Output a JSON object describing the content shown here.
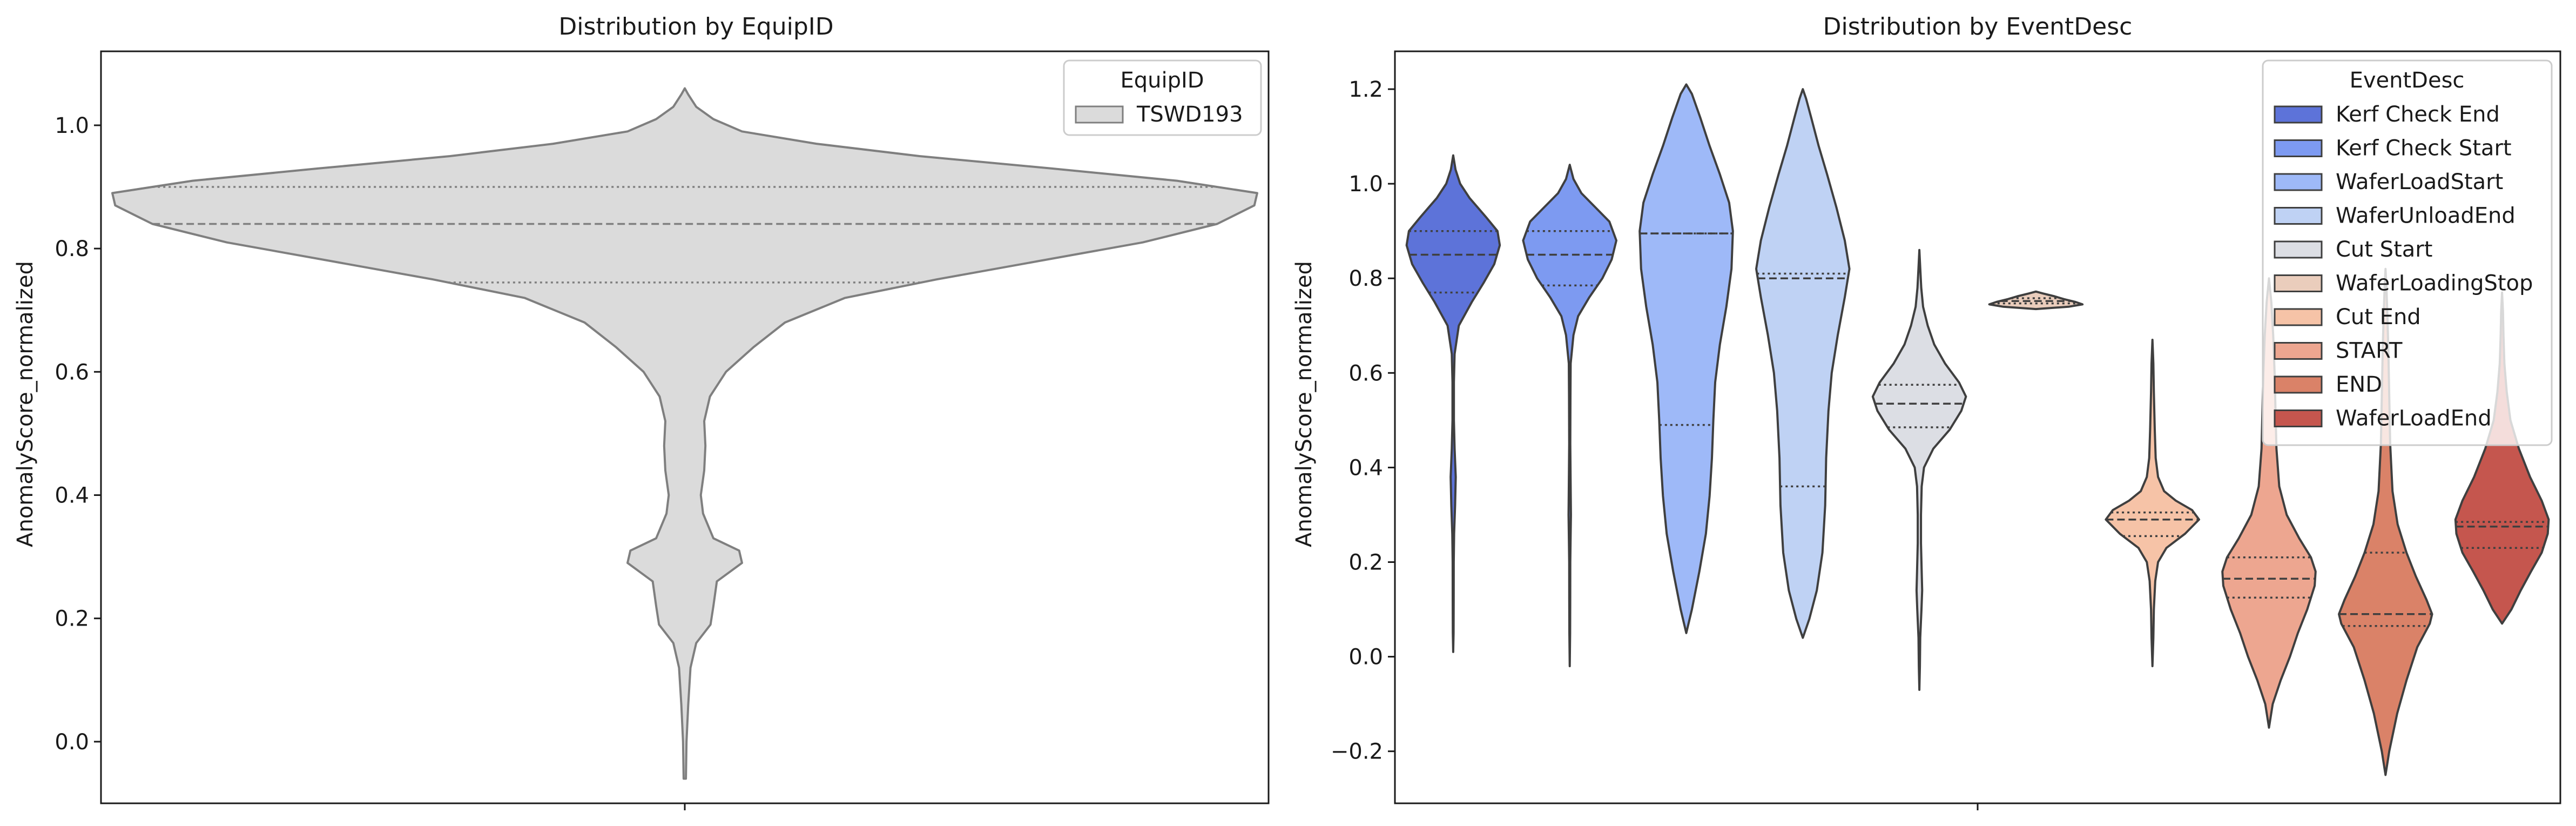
{
  "chart_data": [
    {
      "type": "violin",
      "title": "Distribution by EquipID",
      "xlabel": "",
      "ylabel": "AnomalyScore_normalized",
      "ylim": [
        -0.1,
        1.12
      ],
      "yticks": [
        "0.0",
        "0.2",
        "0.4",
        "0.6",
        "0.8",
        "1.0"
      ],
      "grid": false,
      "legend": {
        "title": "EquipID",
        "position": "top-right",
        "entries": [
          "TSWD193"
        ]
      },
      "series": [
        {
          "name": "TSWD193",
          "color": "#dbdbdb",
          "edge": "#7f7f7f",
          "quartiles": [
            0.745,
            0.84,
            0.9
          ],
          "profile": [
            [
              -0.06,
              0.002
            ],
            [
              0.0,
              0.003
            ],
            [
              0.06,
              0.006
            ],
            [
              0.12,
              0.01
            ],
            [
              0.16,
              0.02
            ],
            [
              0.19,
              0.045
            ],
            [
              0.22,
              0.05
            ],
            [
              0.26,
              0.056
            ],
            [
              0.29,
              0.1
            ],
            [
              0.31,
              0.095
            ],
            [
              0.33,
              0.05
            ],
            [
              0.37,
              0.032
            ],
            [
              0.4,
              0.028
            ],
            [
              0.44,
              0.034
            ],
            [
              0.48,
              0.036
            ],
            [
              0.52,
              0.034
            ],
            [
              0.56,
              0.044
            ],
            [
              0.6,
              0.072
            ],
            [
              0.64,
              0.12
            ],
            [
              0.68,
              0.175
            ],
            [
              0.72,
              0.28
            ],
            [
              0.75,
              0.44
            ],
            [
              0.78,
              0.62
            ],
            [
              0.81,
              0.8
            ],
            [
              0.84,
              0.93
            ],
            [
              0.87,
              0.995
            ],
            [
              0.89,
              1.0
            ],
            [
              0.91,
              0.86
            ],
            [
              0.93,
              0.64
            ],
            [
              0.95,
              0.41
            ],
            [
              0.97,
              0.23
            ],
            [
              0.99,
              0.1
            ],
            [
              1.01,
              0.05
            ],
            [
              1.03,
              0.02
            ],
            [
              1.05,
              0.006
            ],
            [
              1.06,
              0.0
            ]
          ]
        }
      ]
    },
    {
      "type": "violin",
      "title": "Distribution by EventDesc",
      "xlabel": "",
      "ylabel": "AnomalyScore_normalized",
      "ylim": [
        -0.31,
        1.28
      ],
      "yticks": [
        "−0.2",
        "0.0",
        "0.2",
        "0.4",
        "0.6",
        "0.8",
        "1.0",
        "1.2"
      ],
      "grid": false,
      "legend": {
        "title": "EventDesc",
        "position": "top-right",
        "entries": [
          "Kerf Check End",
          "Kerf Check Start",
          "WaferLoadStart",
          "WaferUnloadEnd",
          "Cut Start",
          "WaferLoadingStop",
          "Cut End",
          "START",
          "END",
          "WaferLoadEnd"
        ]
      },
      "series": [
        {
          "name": "Kerf Check End",
          "color": "#5d73d9",
          "quartiles": [
            0.77,
            0.85,
            0.9
          ],
          "profile": [
            [
              0.01,
              0.0
            ],
            [
              0.05,
              0.008
            ],
            [
              0.12,
              0.01
            ],
            [
              0.2,
              0.012
            ],
            [
              0.26,
              0.02
            ],
            [
              0.32,
              0.04
            ],
            [
              0.38,
              0.055
            ],
            [
              0.44,
              0.03
            ],
            [
              0.5,
              0.015
            ],
            [
              0.58,
              0.015
            ],
            [
              0.64,
              0.03
            ],
            [
              0.7,
              0.12
            ],
            [
              0.75,
              0.4
            ],
            [
              0.79,
              0.65
            ],
            [
              0.83,
              0.88
            ],
            [
              0.87,
              1.0
            ],
            [
              0.9,
              0.95
            ],
            [
              0.93,
              0.7
            ],
            [
              0.97,
              0.35
            ],
            [
              1.0,
              0.15
            ],
            [
              1.03,
              0.05
            ],
            [
              1.06,
              0.0
            ]
          ]
        },
        {
          "name": "Kerf Check Start",
          "color": "#7d9af1",
          "quartiles": [
            0.785,
            0.85,
            0.9
          ],
          "profile": [
            [
              -0.02,
              0.0
            ],
            [
              0.05,
              0.008
            ],
            [
              0.12,
              0.01
            ],
            [
              0.2,
              0.012
            ],
            [
              0.26,
              0.02
            ],
            [
              0.3,
              0.025
            ],
            [
              0.36,
              0.02
            ],
            [
              0.45,
              0.012
            ],
            [
              0.55,
              0.015
            ],
            [
              0.62,
              0.02
            ],
            [
              0.68,
              0.08
            ],
            [
              0.72,
              0.18
            ],
            [
              0.76,
              0.42
            ],
            [
              0.8,
              0.7
            ],
            [
              0.84,
              0.9
            ],
            [
              0.88,
              1.0
            ],
            [
              0.92,
              0.85
            ],
            [
              0.95,
              0.55
            ],
            [
              0.98,
              0.25
            ],
            [
              1.01,
              0.08
            ],
            [
              1.04,
              0.0
            ]
          ]
        },
        {
          "name": "WaferLoadStart",
          "color": "#9eb9f8",
          "quartiles": [
            0.49,
            0.895,
            0.895
          ],
          "profile": [
            [
              0.05,
              0.0
            ],
            [
              0.1,
              0.12
            ],
            [
              0.18,
              0.28
            ],
            [
              0.26,
              0.42
            ],
            [
              0.34,
              0.5
            ],
            [
              0.42,
              0.55
            ],
            [
              0.5,
              0.58
            ],
            [
              0.58,
              0.62
            ],
            [
              0.66,
              0.72
            ],
            [
              0.74,
              0.86
            ],
            [
              0.82,
              0.97
            ],
            [
              0.9,
              1.0
            ],
            [
              0.96,
              0.92
            ],
            [
              1.02,
              0.72
            ],
            [
              1.08,
              0.5
            ],
            [
              1.14,
              0.3
            ],
            [
              1.19,
              0.12
            ],
            [
              1.21,
              0.0
            ]
          ]
        },
        {
          "name": "WaferUnloadEnd",
          "color": "#bfd2f4",
          "quartiles": [
            0.36,
            0.8,
            0.81
          ],
          "profile": [
            [
              0.04,
              0.0
            ],
            [
              0.08,
              0.14
            ],
            [
              0.14,
              0.3
            ],
            [
              0.22,
              0.42
            ],
            [
              0.32,
              0.48
            ],
            [
              0.42,
              0.5
            ],
            [
              0.52,
              0.55
            ],
            [
              0.6,
              0.62
            ],
            [
              0.68,
              0.75
            ],
            [
              0.76,
              0.9
            ],
            [
              0.82,
              1.0
            ],
            [
              0.88,
              0.9
            ],
            [
              0.95,
              0.72
            ],
            [
              1.02,
              0.52
            ],
            [
              1.08,
              0.34
            ],
            [
              1.14,
              0.18
            ],
            [
              1.18,
              0.07
            ],
            [
              1.2,
              0.0
            ]
          ]
        },
        {
          "name": "Cut Start",
          "color": "#dcdee4",
          "quartiles": [
            0.485,
            0.535,
            0.575
          ],
          "profile": [
            [
              -0.07,
              0.0
            ],
            [
              -0.02,
              0.012
            ],
            [
              0.04,
              0.018
            ],
            [
              0.1,
              0.045
            ],
            [
              0.14,
              0.06
            ],
            [
              0.18,
              0.05
            ],
            [
              0.24,
              0.035
            ],
            [
              0.3,
              0.035
            ],
            [
              0.36,
              0.05
            ],
            [
              0.4,
              0.1
            ],
            [
              0.44,
              0.3
            ],
            [
              0.48,
              0.65
            ],
            [
              0.52,
              0.9
            ],
            [
              0.55,
              1.0
            ],
            [
              0.58,
              0.85
            ],
            [
              0.62,
              0.55
            ],
            [
              0.66,
              0.32
            ],
            [
              0.7,
              0.18
            ],
            [
              0.74,
              0.08
            ],
            [
              0.78,
              0.04
            ],
            [
              0.82,
              0.02
            ],
            [
              0.86,
              0.0
            ]
          ]
        },
        {
          "name": "WaferLoadingStop",
          "color": "#eacdbc",
          "quartiles": [
            0.747,
            0.752,
            0.758
          ],
          "profile": [
            [
              0.735,
              0.0
            ],
            [
              0.74,
              0.7
            ],
            [
              0.745,
              1.0
            ],
            [
              0.75,
              0.85
            ],
            [
              0.756,
              0.6
            ],
            [
              0.762,
              0.4
            ],
            [
              0.768,
              0.15
            ],
            [
              0.772,
              0.0
            ]
          ]
        },
        {
          "name": "Cut End",
          "color": "#f6c3a7",
          "quartiles": [
            0.255,
            0.29,
            0.305
          ],
          "profile": [
            [
              -0.02,
              0.0
            ],
            [
              0.04,
              0.02
            ],
            [
              0.1,
              0.03
            ],
            [
              0.16,
              0.06
            ],
            [
              0.2,
              0.12
            ],
            [
              0.23,
              0.3
            ],
            [
              0.26,
              0.7
            ],
            [
              0.29,
              1.0
            ],
            [
              0.31,
              0.85
            ],
            [
              0.33,
              0.5
            ],
            [
              0.35,
              0.25
            ],
            [
              0.38,
              0.12
            ],
            [
              0.42,
              0.07
            ],
            [
              0.48,
              0.05
            ],
            [
              0.56,
              0.03
            ],
            [
              0.62,
              0.02
            ],
            [
              0.67,
              0.0
            ]
          ]
        },
        {
          "name": "START",
          "color": "#eda690",
          "quartiles": [
            0.125,
            0.165,
            0.21
          ],
          "profile": [
            [
              -0.15,
              0.0
            ],
            [
              -0.1,
              0.08
            ],
            [
              -0.05,
              0.25
            ],
            [
              0.0,
              0.45
            ],
            [
              0.05,
              0.62
            ],
            [
              0.1,
              0.82
            ],
            [
              0.15,
              0.98
            ],
            [
              0.18,
              1.0
            ],
            [
              0.21,
              0.9
            ],
            [
              0.25,
              0.65
            ],
            [
              0.3,
              0.38
            ],
            [
              0.36,
              0.22
            ],
            [
              0.44,
              0.16
            ],
            [
              0.52,
              0.14
            ],
            [
              0.6,
              0.12
            ],
            [
              0.68,
              0.09
            ],
            [
              0.75,
              0.05
            ],
            [
              0.8,
              0.0
            ]
          ]
        },
        {
          "name": "END",
          "color": "#da8268",
          "quartiles": [
            0.065,
            0.09,
            0.22
          ],
          "profile": [
            [
              -0.25,
              0.0
            ],
            [
              -0.2,
              0.08
            ],
            [
              -0.12,
              0.25
            ],
            [
              -0.05,
              0.45
            ],
            [
              0.02,
              0.68
            ],
            [
              0.07,
              0.95
            ],
            [
              0.09,
              1.0
            ],
            [
              0.12,
              0.88
            ],
            [
              0.17,
              0.65
            ],
            [
              0.22,
              0.45
            ],
            [
              0.28,
              0.26
            ],
            [
              0.35,
              0.15
            ],
            [
              0.45,
              0.1
            ],
            [
              0.55,
              0.08
            ],
            [
              0.65,
              0.06
            ],
            [
              0.72,
              0.04
            ],
            [
              0.78,
              0.02
            ],
            [
              0.82,
              0.0
            ]
          ]
        },
        {
          "name": "WaferLoadEnd",
          "color": "#c5564e",
          "quartiles": [
            0.23,
            0.275,
            0.285
          ],
          "profile": [
            [
              0.07,
              0.0
            ],
            [
              0.1,
              0.2
            ],
            [
              0.14,
              0.4
            ],
            [
              0.18,
              0.62
            ],
            [
              0.22,
              0.85
            ],
            [
              0.26,
              0.98
            ],
            [
              0.29,
              1.0
            ],
            [
              0.33,
              0.85
            ],
            [
              0.38,
              0.6
            ],
            [
              0.44,
              0.36
            ],
            [
              0.5,
              0.18
            ],
            [
              0.56,
              0.1
            ],
            [
              0.62,
              0.05
            ],
            [
              0.68,
              0.03
            ],
            [
              0.73,
              0.02
            ],
            [
              0.77,
              0.0
            ]
          ]
        }
      ]
    }
  ]
}
